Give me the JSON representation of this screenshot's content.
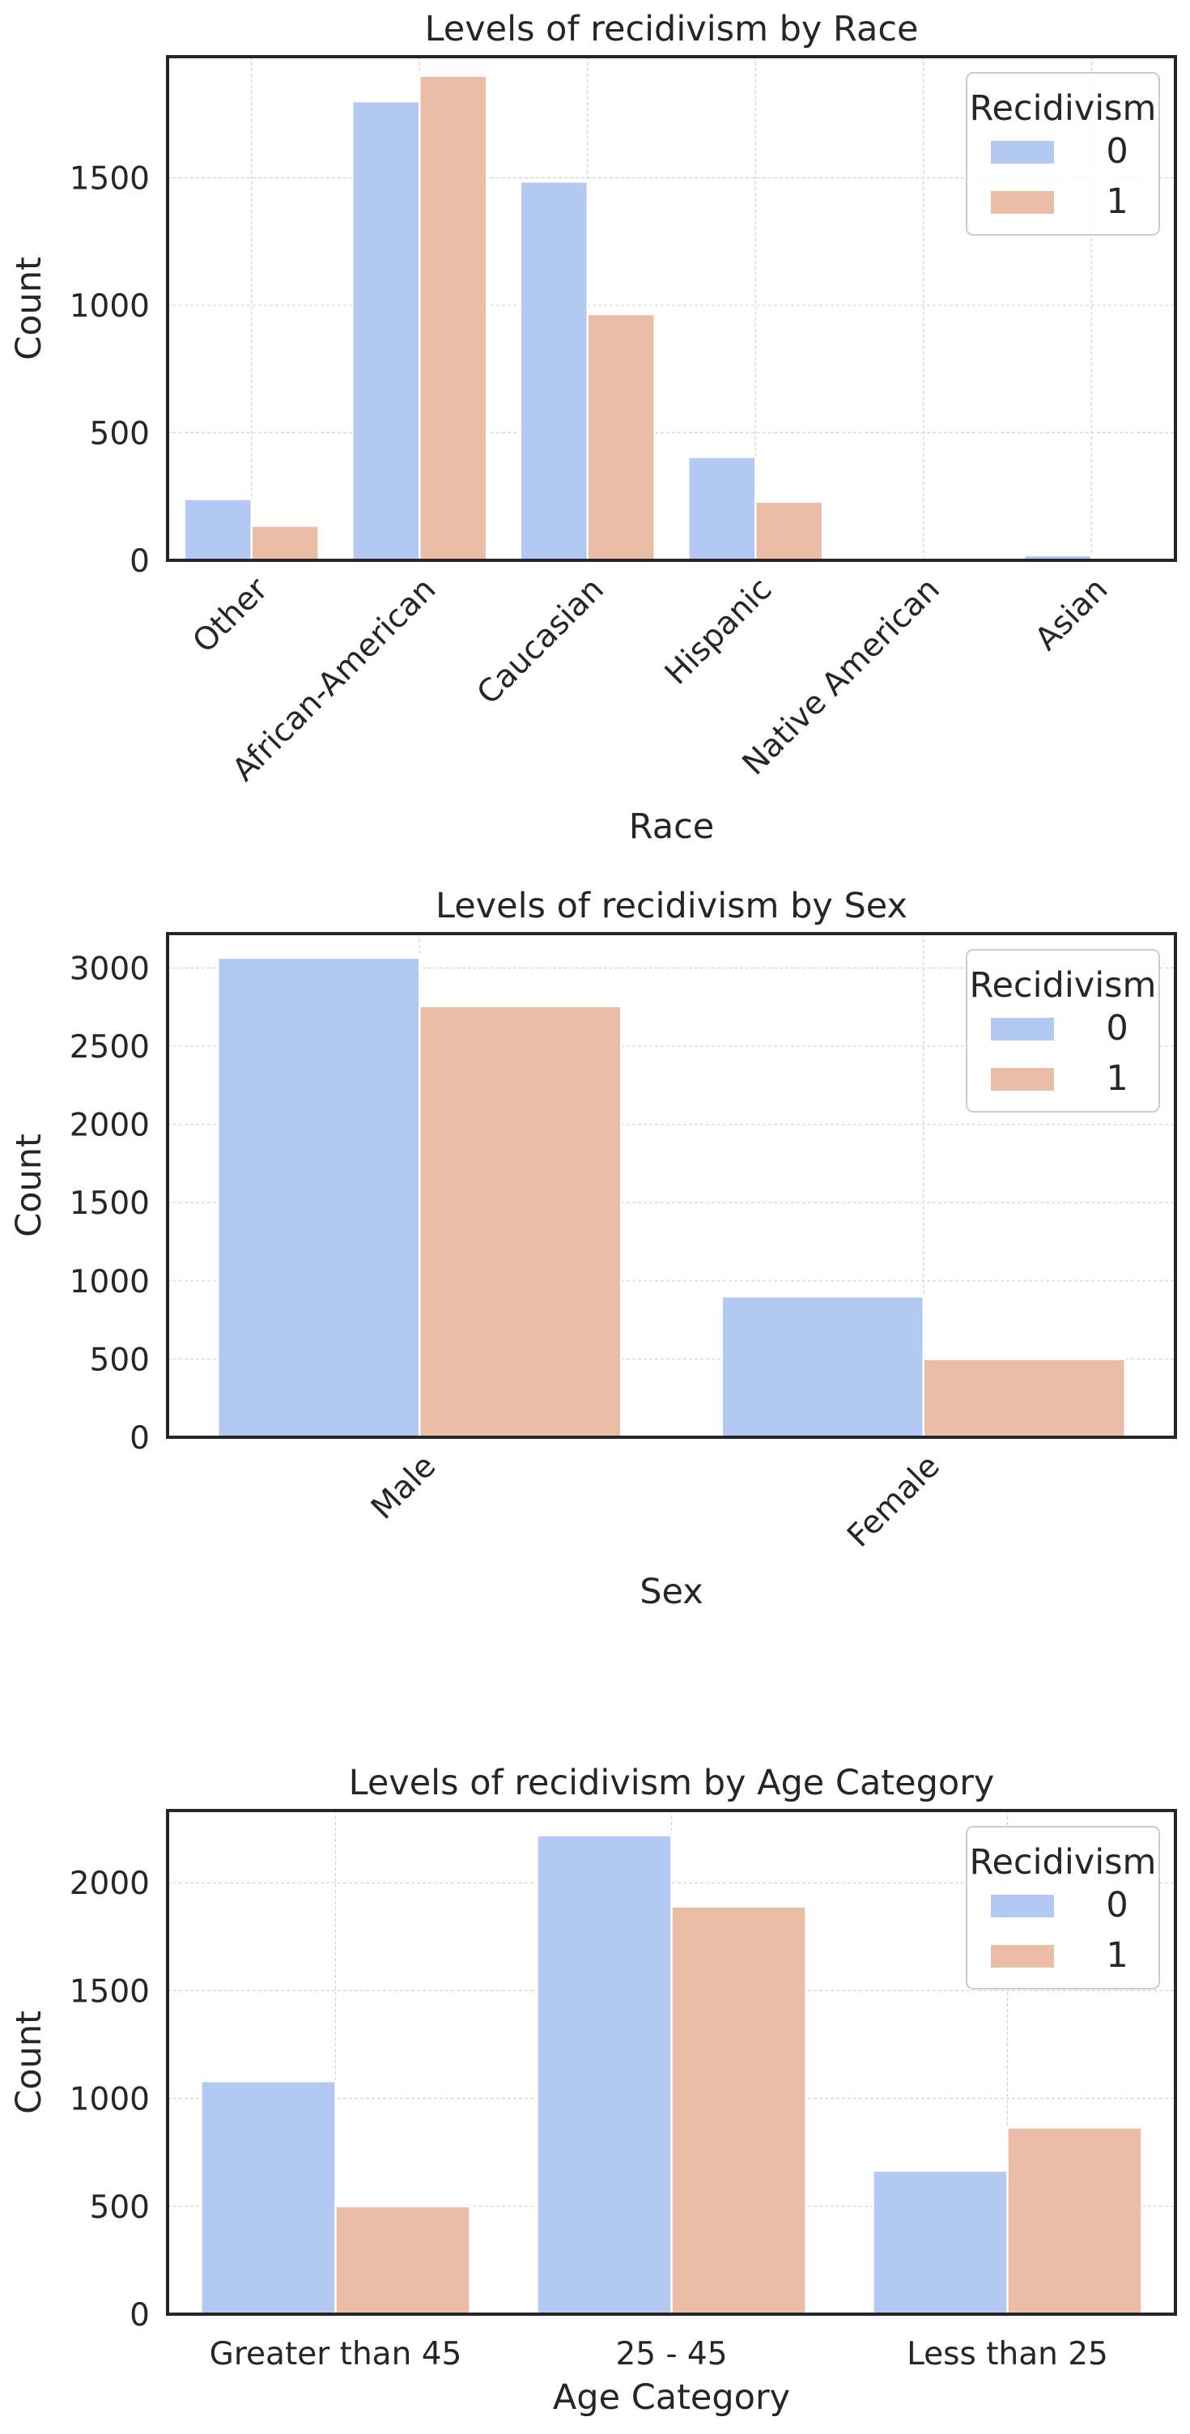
{
  "figure": {
    "legend_title": "Recidivism",
    "series_colors": {
      "0": "#b3c9f3",
      "1": "#ebbca6"
    },
    "series_colors_hover": {
      "0": "#b3c9f3",
      "1": "#ebbca6"
    }
  },
  "chart_data": [
    {
      "type": "bar",
      "title": "Levels of recidivism by Race",
      "xlabel": "Race",
      "ylabel": "Count",
      "categories": [
        "Other",
        "African-American",
        "Caucasian",
        "Hispanic",
        "Native American",
        "Asian"
      ],
      "series": [
        {
          "name": "0",
          "values": [
            240,
            1800,
            1485,
            405,
            4,
            20
          ]
        },
        {
          "name": "1",
          "values": [
            135,
            1900,
            965,
            230,
            5,
            7
          ]
        }
      ],
      "yticks": [
        0,
        500,
        1000,
        1500
      ],
      "ylim": [
        0,
        1975
      ],
      "xtick_rotation": 45,
      "grid": true,
      "legend": {
        "title": "Recidivism",
        "position": "top-right",
        "entries": [
          "0",
          "1"
        ]
      }
    },
    {
      "type": "bar",
      "title": "Levels of recidivism by Sex",
      "xlabel": "Sex",
      "ylabel": "Count",
      "categories": [
        "Male",
        "Female"
      ],
      "series": [
        {
          "name": "0",
          "values": [
            3065,
            900
          ]
        },
        {
          "name": "1",
          "values": [
            2755,
            500
          ]
        }
      ],
      "yticks": [
        0,
        500,
        1000,
        1500,
        2000,
        2500,
        3000
      ],
      "ylim": [
        0,
        3220
      ],
      "xtick_rotation": 45,
      "grid": true,
      "legend": {
        "title": "Recidivism",
        "position": "top-right",
        "entries": [
          "0",
          "1"
        ]
      }
    },
    {
      "type": "bar",
      "title": "Levels of recidivism by Age Category",
      "xlabel": "Age Category",
      "ylabel": "Count",
      "categories": [
        "Greater than 45",
        "25 - 45",
        "Less than 25"
      ],
      "series": [
        {
          "name": "0",
          "values": [
            1080,
            2220,
            665
          ]
        },
        {
          "name": "1",
          "values": [
            500,
            1890,
            865
          ]
        }
      ],
      "yticks": [
        0,
        500,
        1000,
        1500,
        2000
      ],
      "ylim": [
        0,
        2335
      ],
      "xtick_rotation": 0,
      "grid": true,
      "legend": {
        "title": "Recidivism",
        "position": "top-right",
        "entries": [
          "0",
          "1"
        ]
      }
    }
  ]
}
